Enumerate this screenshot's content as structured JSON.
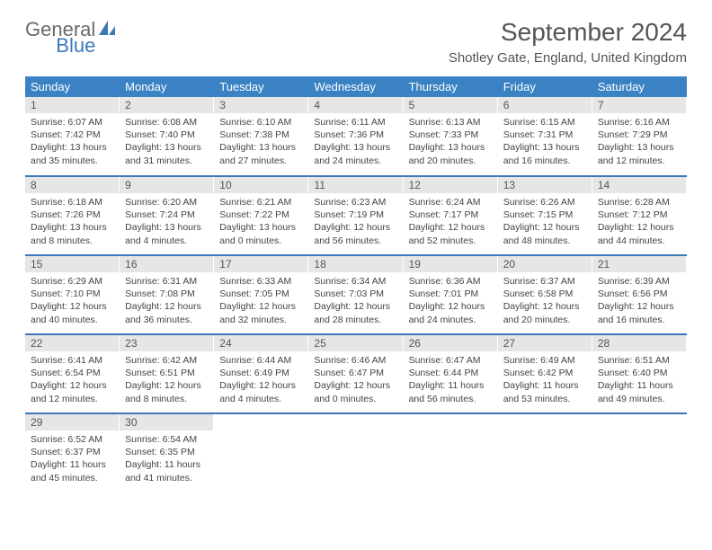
{
  "logo": {
    "text1": "General",
    "text2": "Blue"
  },
  "title": "September 2024",
  "location": "Shotley Gate, England, United Kingdom",
  "colors": {
    "header_bg": "#3b82c4",
    "header_text": "#ffffff",
    "daynum_bg": "#e6e6e6",
    "row_border": "#3b78b8",
    "logo_gray": "#6a6a6a",
    "logo_blue": "#3b78b8"
  },
  "dayHeaders": [
    "Sunday",
    "Monday",
    "Tuesday",
    "Wednesday",
    "Thursday",
    "Friday",
    "Saturday"
  ],
  "weeks": [
    [
      {
        "n": "1",
        "sr": "6:07 AM",
        "ss": "7:42 PM",
        "dl": "13 hours and 35 minutes."
      },
      {
        "n": "2",
        "sr": "6:08 AM",
        "ss": "7:40 PM",
        "dl": "13 hours and 31 minutes."
      },
      {
        "n": "3",
        "sr": "6:10 AM",
        "ss": "7:38 PM",
        "dl": "13 hours and 27 minutes."
      },
      {
        "n": "4",
        "sr": "6:11 AM",
        "ss": "7:36 PM",
        "dl": "13 hours and 24 minutes."
      },
      {
        "n": "5",
        "sr": "6:13 AM",
        "ss": "7:33 PM",
        "dl": "13 hours and 20 minutes."
      },
      {
        "n": "6",
        "sr": "6:15 AM",
        "ss": "7:31 PM",
        "dl": "13 hours and 16 minutes."
      },
      {
        "n": "7",
        "sr": "6:16 AM",
        "ss": "7:29 PM",
        "dl": "13 hours and 12 minutes."
      }
    ],
    [
      {
        "n": "8",
        "sr": "6:18 AM",
        "ss": "7:26 PM",
        "dl": "13 hours and 8 minutes."
      },
      {
        "n": "9",
        "sr": "6:20 AM",
        "ss": "7:24 PM",
        "dl": "13 hours and 4 minutes."
      },
      {
        "n": "10",
        "sr": "6:21 AM",
        "ss": "7:22 PM",
        "dl": "13 hours and 0 minutes."
      },
      {
        "n": "11",
        "sr": "6:23 AM",
        "ss": "7:19 PM",
        "dl": "12 hours and 56 minutes."
      },
      {
        "n": "12",
        "sr": "6:24 AM",
        "ss": "7:17 PM",
        "dl": "12 hours and 52 minutes."
      },
      {
        "n": "13",
        "sr": "6:26 AM",
        "ss": "7:15 PM",
        "dl": "12 hours and 48 minutes."
      },
      {
        "n": "14",
        "sr": "6:28 AM",
        "ss": "7:12 PM",
        "dl": "12 hours and 44 minutes."
      }
    ],
    [
      {
        "n": "15",
        "sr": "6:29 AM",
        "ss": "7:10 PM",
        "dl": "12 hours and 40 minutes."
      },
      {
        "n": "16",
        "sr": "6:31 AM",
        "ss": "7:08 PM",
        "dl": "12 hours and 36 minutes."
      },
      {
        "n": "17",
        "sr": "6:33 AM",
        "ss": "7:05 PM",
        "dl": "12 hours and 32 minutes."
      },
      {
        "n": "18",
        "sr": "6:34 AM",
        "ss": "7:03 PM",
        "dl": "12 hours and 28 minutes."
      },
      {
        "n": "19",
        "sr": "6:36 AM",
        "ss": "7:01 PM",
        "dl": "12 hours and 24 minutes."
      },
      {
        "n": "20",
        "sr": "6:37 AM",
        "ss": "6:58 PM",
        "dl": "12 hours and 20 minutes."
      },
      {
        "n": "21",
        "sr": "6:39 AM",
        "ss": "6:56 PM",
        "dl": "12 hours and 16 minutes."
      }
    ],
    [
      {
        "n": "22",
        "sr": "6:41 AM",
        "ss": "6:54 PM",
        "dl": "12 hours and 12 minutes."
      },
      {
        "n": "23",
        "sr": "6:42 AM",
        "ss": "6:51 PM",
        "dl": "12 hours and 8 minutes."
      },
      {
        "n": "24",
        "sr": "6:44 AM",
        "ss": "6:49 PM",
        "dl": "12 hours and 4 minutes."
      },
      {
        "n": "25",
        "sr": "6:46 AM",
        "ss": "6:47 PM",
        "dl": "12 hours and 0 minutes."
      },
      {
        "n": "26",
        "sr": "6:47 AM",
        "ss": "6:44 PM",
        "dl": "11 hours and 56 minutes."
      },
      {
        "n": "27",
        "sr": "6:49 AM",
        "ss": "6:42 PM",
        "dl": "11 hours and 53 minutes."
      },
      {
        "n": "28",
        "sr": "6:51 AM",
        "ss": "6:40 PM",
        "dl": "11 hours and 49 minutes."
      }
    ],
    [
      {
        "n": "29",
        "sr": "6:52 AM",
        "ss": "6:37 PM",
        "dl": "11 hours and 45 minutes."
      },
      {
        "n": "30",
        "sr": "6:54 AM",
        "ss": "6:35 PM",
        "dl": "11 hours and 41 minutes."
      },
      null,
      null,
      null,
      null,
      null
    ]
  ],
  "labels": {
    "sunrise": "Sunrise: ",
    "sunset": "Sunset: ",
    "daylight": "Daylight: "
  }
}
